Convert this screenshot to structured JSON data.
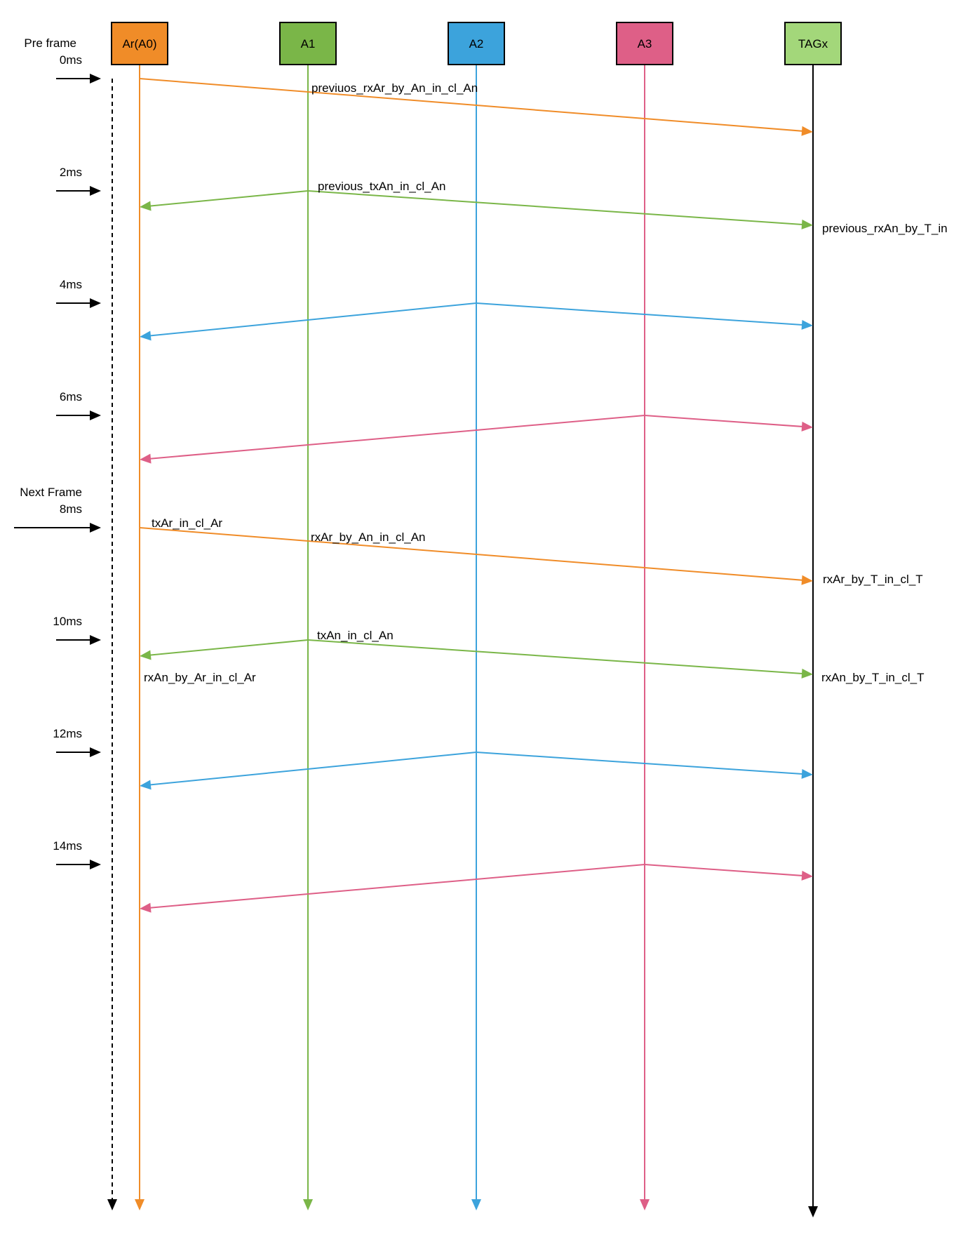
{
  "participants": [
    {
      "id": "ar",
      "label": "Ar(A0)",
      "fill": "#f08c28",
      "line": "#f08c28"
    },
    {
      "id": "a1",
      "label": "A1",
      "fill": "#7ab648",
      "line": "#7ab648"
    },
    {
      "id": "a2",
      "label": "A2",
      "fill": "#3ca3dc",
      "line": "#3ca3dc"
    },
    {
      "id": "a3",
      "label": "A3",
      "fill": "#de5f87",
      "line": "#de5f87"
    },
    {
      "id": "tag",
      "label": "TAGx",
      "fill": "#a3d77a",
      "line": "#000000"
    }
  ],
  "timeline": {
    "ticks": [
      {
        "label": "0ms",
        "prefix": "Pre frame"
      },
      {
        "label": "2ms",
        "prefix": ""
      },
      {
        "label": "4ms",
        "prefix": ""
      },
      {
        "label": "6ms",
        "prefix": ""
      },
      {
        "label": "8ms",
        "prefix": "Next Frame"
      },
      {
        "label": "10ms",
        "prefix": ""
      },
      {
        "label": "12ms",
        "prefix": ""
      },
      {
        "label": "14ms",
        "prefix": ""
      }
    ]
  },
  "messages": [
    {
      "from": "ar",
      "to": [
        "tag"
      ],
      "time_ms": 0,
      "color": "#f08c28"
    },
    {
      "from": "a1",
      "to": [
        "ar",
        "tag"
      ],
      "time_ms": 2,
      "color": "#7ab648"
    },
    {
      "from": "a2",
      "to": [
        "ar",
        "tag"
      ],
      "time_ms": 4,
      "color": "#3ca3dc"
    },
    {
      "from": "a3",
      "to": [
        "ar",
        "tag"
      ],
      "time_ms": 6,
      "color": "#de5f87"
    },
    {
      "from": "ar",
      "to": [
        "tag"
      ],
      "time_ms": 8,
      "color": "#f08c28"
    },
    {
      "from": "a1",
      "to": [
        "ar",
        "tag"
      ],
      "time_ms": 10,
      "color": "#7ab648"
    },
    {
      "from": "a2",
      "to": [
        "ar",
        "tag"
      ],
      "time_ms": 12,
      "color": "#3ca3dc"
    },
    {
      "from": "a3",
      "to": [
        "ar",
        "tag"
      ],
      "time_ms": 14,
      "color": "#de5f87"
    }
  ],
  "labels": {
    "previuos_rx": "previuos_rxAr_by_An_in_cl_An",
    "previous_tx": "previous_txAn_in_cl_An",
    "previous_rx_tag": "previous_rxAn_by_T_in",
    "tx_ar": "txAr_in_cl_Ar",
    "rx_ar_by_an": "rxAr_by_An_in_cl_An",
    "rx_ar_by_t": "rxAr_by_T_in_cl_T",
    "tx_an": "txAn_in_cl_An",
    "rx_an_by_ar": "rxAn_by_Ar_in_cl_Ar",
    "rx_an_by_t": "rxAn_by_T_in_cl_T"
  }
}
